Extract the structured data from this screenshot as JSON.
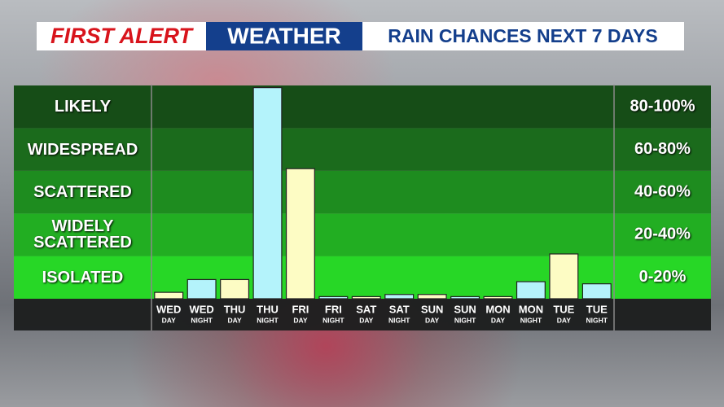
{
  "header": {
    "brand_left": "FIRST ALERT",
    "brand_right": "WEATHER",
    "title": "RAIN CHANCES NEXT 7 DAYS"
  },
  "chart_data": {
    "type": "bar",
    "categories": [
      "WED",
      "WED",
      "THU",
      "THU",
      "FRI",
      "FRI",
      "SAT",
      "SAT",
      "SUN",
      "SUN",
      "MON",
      "MON",
      "TUE",
      "TUE"
    ],
    "periods": [
      "DAY",
      "NIGHT",
      "DAY",
      "NIGHT",
      "DAY",
      "NIGHT",
      "DAY",
      "NIGHT",
      "DAY",
      "NIGHT",
      "DAY",
      "NIGHT",
      "DAY",
      "NIGHT"
    ],
    "values": [
      3,
      9,
      9,
      99,
      61,
      1,
      1,
      2,
      2,
      1,
      1,
      8,
      21,
      7
    ],
    "period_colors": {
      "DAY": "#fdfcc4",
      "NIGHT": "#b4f3fb"
    },
    "ylim": [
      0,
      100
    ],
    "yticks": [
      0,
      20,
      40,
      60,
      80,
      100
    ],
    "bands": [
      {
        "name": "ISOLATED",
        "range": "0-20%",
        "color": "#27d726"
      },
      {
        "name": "WIDELY SCATTERED",
        "range": "20-40%",
        "color": "#22ae22"
      },
      {
        "name": "SCATTERED",
        "range": "40-60%",
        "color": "#1e8c1f"
      },
      {
        "name": "WIDESPREAD",
        "range": "60-80%",
        "color": "#1b6b1c"
      },
      {
        "name": "LIKELY",
        "range": "80-100%",
        "color": "#164d17"
      }
    ]
  }
}
